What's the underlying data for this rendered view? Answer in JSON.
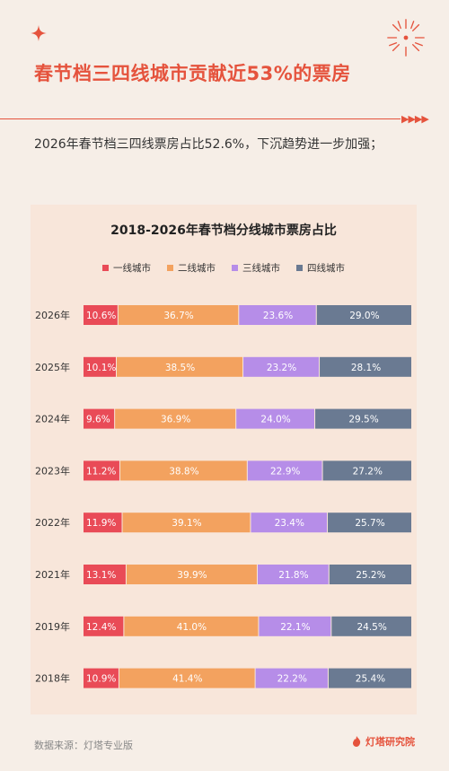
{
  "headline": "春节档三四线城市贡献近53%的票房",
  "summary": "2026年春节档三四线票房占比52.6%，下沉趋势进一步加强；",
  "source": "数据来源：灯塔专业版",
  "brand": "灯塔研究院",
  "colors": {
    "accent": "#e5533d",
    "tier1": "#e94b57",
    "tier2": "#f3a25f",
    "tier3": "#b68de8",
    "tier4": "#6a7a92"
  },
  "chart_data": {
    "type": "bar",
    "orientation": "horizontal",
    "stacked": true,
    "normalized": true,
    "title": "2018-2026年春节档分线城市票房占比",
    "categories": [
      "2026年",
      "2025年",
      "2024年",
      "2023年",
      "2022年",
      "2021年",
      "2019年",
      "2018年"
    ],
    "series": [
      {
        "name": "一线城市",
        "values": [
          10.6,
          10.1,
          9.6,
          11.2,
          11.9,
          13.1,
          12.4,
          10.9
        ]
      },
      {
        "name": "二线城市",
        "values": [
          36.7,
          38.5,
          36.9,
          38.8,
          39.1,
          39.9,
          41.0,
          41.4
        ]
      },
      {
        "name": "三线城市",
        "values": [
          23.6,
          23.2,
          24.0,
          22.9,
          23.4,
          21.8,
          22.1,
          22.2
        ]
      },
      {
        "name": "四线城市",
        "values": [
          29.0,
          28.1,
          29.5,
          27.2,
          25.7,
          25.2,
          24.5,
          25.4
        ]
      }
    ],
    "value_suffix": "%",
    "legend_position": "top",
    "grid": false
  }
}
